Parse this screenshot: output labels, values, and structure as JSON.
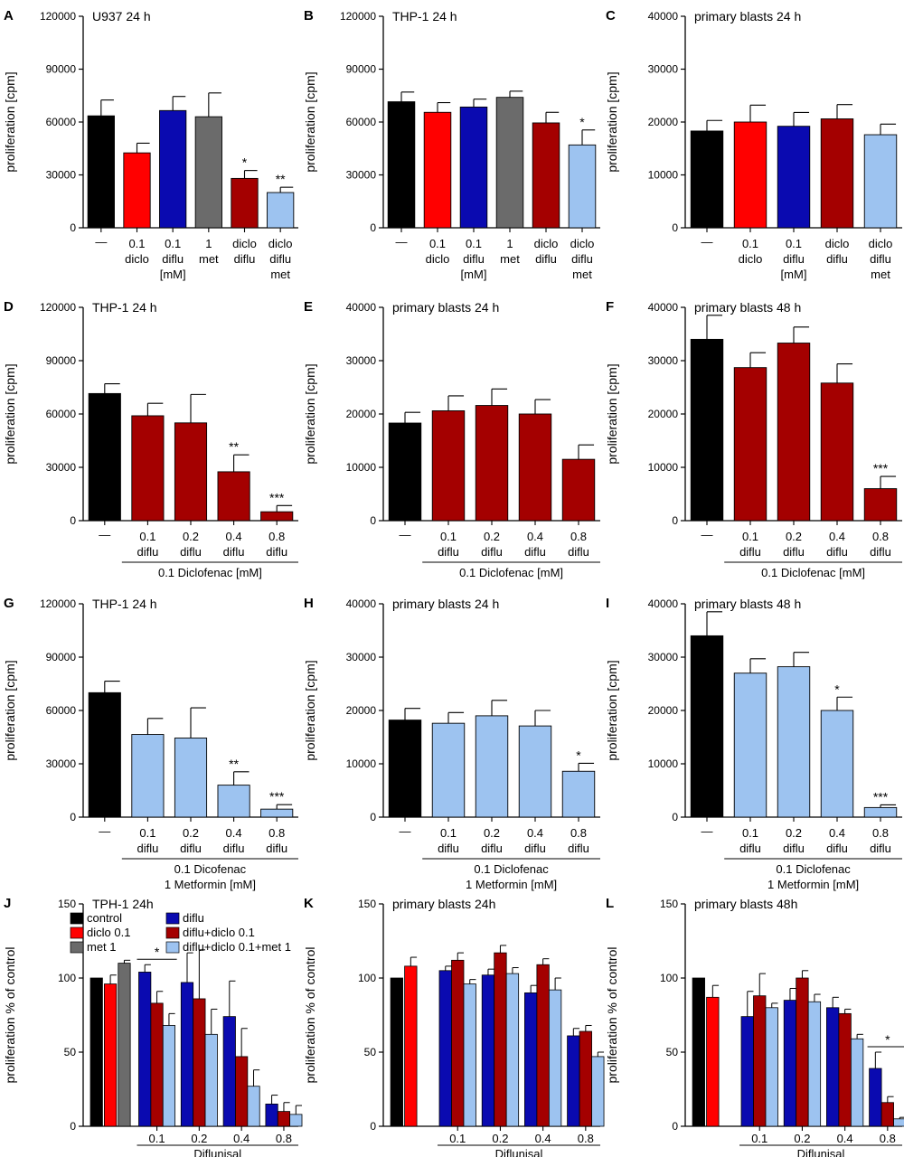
{
  "colors": {
    "black": "#000000",
    "red": "#ff0000",
    "blue": "#0a0ab0",
    "gray": "#6b6b6b",
    "darkred": "#a40000",
    "lightblue": "#9dc3f0"
  },
  "chart_data": [
    {
      "letter": "A",
      "type": "bar",
      "title": "U937 24 h",
      "ylabel": "proliferation [cpm]",
      "ylim": [
        0,
        120000
      ],
      "yticks": [
        "0",
        "30000",
        "60000",
        "90000",
        "120000"
      ],
      "categories": [
        [
          "—"
        ],
        [
          "0.1",
          "diclo"
        ],
        [
          "0.1",
          "diflu"
        ],
        [
          "1",
          "met"
        ],
        [
          "diclo",
          "diflu"
        ],
        [
          "diclo",
          "diflu",
          "met"
        ]
      ],
      "values": [
        63500,
        42500,
        66500,
        63000,
        28000,
        20000
      ],
      "errors": [
        9000,
        5500,
        8000,
        13500,
        4500,
        3000
      ],
      "colors": [
        "black",
        "red",
        "blue",
        "gray",
        "darkred",
        "lightblue"
      ],
      "sig": [
        "",
        "",
        "",
        "",
        "*",
        "**"
      ],
      "unit_label": "[mM]"
    },
    {
      "letter": "B",
      "type": "bar",
      "title": "THP-1 24 h",
      "ylabel": "proliferation [cpm]",
      "ylim": [
        0,
        120000
      ],
      "yticks": [
        "0",
        "30000",
        "60000",
        "90000",
        "120000"
      ],
      "categories": [
        [
          "—"
        ],
        [
          "0.1",
          "diclo"
        ],
        [
          "0.1",
          "diflu"
        ],
        [
          "1",
          "met"
        ],
        [
          "diclo",
          "diflu"
        ],
        [
          "diclo",
          "diflu",
          "met"
        ]
      ],
      "values": [
        71500,
        65500,
        68500,
        74000,
        59500,
        47000
      ],
      "errors": [
        5500,
        5500,
        4500,
        3500,
        6000,
        8500
      ],
      "colors": [
        "black",
        "red",
        "blue",
        "gray",
        "darkred",
        "lightblue"
      ],
      "sig": [
        "",
        "",
        "",
        "",
        "",
        "*"
      ],
      "unit_label": "[mM]"
    },
    {
      "letter": "C",
      "type": "bar",
      "title": "primary blasts 24 h",
      "ylabel": "proliferation [cpm]",
      "ylim": [
        0,
        40000
      ],
      "yticks": [
        "0",
        "10000",
        "20000",
        "30000",
        "40000"
      ],
      "categories": [
        [
          "—"
        ],
        [
          "0.1",
          "diclo"
        ],
        [
          "0.1",
          "diflu"
        ],
        [
          "diclo",
          "diflu"
        ],
        [
          "diclo",
          "diflu",
          "met"
        ]
      ],
      "values": [
        18300,
        20000,
        19200,
        20600,
        17600
      ],
      "errors": [
        2000,
        3200,
        2600,
        2700,
        2000
      ],
      "colors": [
        "black",
        "red",
        "blue",
        "darkred",
        "lightblue"
      ],
      "sig": [
        "",
        "",
        "",
        "",
        ""
      ],
      "unit_label": "[mM]"
    },
    {
      "letter": "D",
      "type": "bar",
      "title": "THP-1 24 h",
      "ylabel": "proliferation [cpm]",
      "ylim": [
        0,
        120000
      ],
      "yticks": [
        "0",
        "30000",
        "60000",
        "90000",
        "120000"
      ],
      "categories": [
        [
          "—"
        ],
        [
          "0.1",
          "diflu"
        ],
        [
          "0.2",
          "diflu"
        ],
        [
          "0.4",
          "diflu"
        ],
        [
          "0.8",
          "diflu"
        ]
      ],
      "values": [
        71500,
        59000,
        55000,
        27500,
        5000
      ],
      "errors": [
        5500,
        7000,
        16000,
        9500,
        3500
      ],
      "colors": [
        "black",
        "darkred",
        "darkred",
        "darkred",
        "darkred"
      ],
      "sig": [
        "",
        "",
        "",
        "**",
        "***"
      ],
      "bracket": [
        "0.1 Diclofenac [mM]"
      ]
    },
    {
      "letter": "E",
      "type": "bar",
      "title": "primary blasts 24 h",
      "ylabel": "proliferation [cpm]",
      "ylim": [
        0,
        40000
      ],
      "yticks": [
        "0",
        "10000",
        "20000",
        "30000",
        "40000"
      ],
      "categories": [
        [
          "—"
        ],
        [
          "0.1",
          "diflu"
        ],
        [
          "0.2",
          "diflu"
        ],
        [
          "0.4",
          "diflu"
        ],
        [
          "0.8",
          "diflu"
        ]
      ],
      "values": [
        18300,
        20600,
        21600,
        20000,
        11500
      ],
      "errors": [
        2000,
        2800,
        3100,
        2700,
        2700
      ],
      "colors": [
        "black",
        "darkred",
        "darkred",
        "darkred",
        "darkred"
      ],
      "sig": [
        "",
        "",
        "",
        "",
        ""
      ],
      "bracket": [
        "0.1 Diclofenac [mM]"
      ]
    },
    {
      "letter": "F",
      "type": "bar",
      "title": "primary blasts 48 h",
      "ylabel": "proliferation [cpm]",
      "ylim": [
        0,
        40000
      ],
      "yticks": [
        "0",
        "10000",
        "20000",
        "30000",
        "40000"
      ],
      "categories": [
        [
          "—"
        ],
        [
          "0.1",
          "diflu"
        ],
        [
          "0.2",
          "diflu"
        ],
        [
          "0.4",
          "diflu"
        ],
        [
          "0.8",
          "diflu"
        ]
      ],
      "values": [
        34000,
        28700,
        33300,
        25800,
        6000
      ],
      "errors": [
        4500,
        2800,
        3000,
        3600,
        2300
      ],
      "colors": [
        "black",
        "darkred",
        "darkred",
        "darkred",
        "darkred"
      ],
      "sig": [
        "",
        "",
        "",
        "",
        "***"
      ],
      "bracket": [
        "0.1 Diclofenac [mM]"
      ]
    },
    {
      "letter": "G",
      "type": "bar",
      "title": "THP-1 24 h",
      "ylabel": "proliferation [cpm]",
      "ylim": [
        0,
        120000
      ],
      "yticks": [
        "0",
        "30000",
        "60000",
        "90000",
        "120000"
      ],
      "categories": [
        [
          "—"
        ],
        [
          "0.1",
          "diflu"
        ],
        [
          "0.2",
          "diflu"
        ],
        [
          "0.4",
          "diflu"
        ],
        [
          "0.8",
          "diflu"
        ]
      ],
      "values": [
        70000,
        46500,
        44500,
        18000,
        4500
      ],
      "errors": [
        6500,
        9000,
        17000,
        7500,
        2500
      ],
      "colors": [
        "black",
        "lightblue",
        "lightblue",
        "lightblue",
        "lightblue"
      ],
      "sig": [
        "",
        "",
        "",
        "**",
        "***"
      ],
      "bracket": [
        "0.1 Dicofenac",
        "1 Metformin [mM]"
      ]
    },
    {
      "letter": "H",
      "type": "bar",
      "title": "primary blasts 24 h",
      "ylabel": "proliferation [cpm]",
      "ylim": [
        0,
        40000
      ],
      "yticks": [
        "0",
        "10000",
        "20000",
        "30000",
        "40000"
      ],
      "categories": [
        [
          "—"
        ],
        [
          "0.1",
          "diflu"
        ],
        [
          "0.2",
          "diflu"
        ],
        [
          "0.4",
          "diflu"
        ],
        [
          "0.8",
          "diflu"
        ]
      ],
      "values": [
        18200,
        17600,
        19000,
        17100,
        8600
      ],
      "errors": [
        2200,
        2000,
        2900,
        2900,
        1500
      ],
      "colors": [
        "black",
        "lightblue",
        "lightblue",
        "lightblue",
        "lightblue"
      ],
      "sig": [
        "",
        "",
        "",
        "",
        "*"
      ],
      "bracket": [
        "0.1 Diclofenac",
        "1 Metformin [mM]"
      ]
    },
    {
      "letter": "I",
      "type": "bar",
      "title": "primary blasts 48 h",
      "ylabel": "proliferation [cpm]",
      "ylim": [
        0,
        40000
      ],
      "yticks": [
        "0",
        "10000",
        "20000",
        "30000",
        "40000"
      ],
      "categories": [
        [
          "—"
        ],
        [
          "0.1",
          "diflu"
        ],
        [
          "0.2",
          "diflu"
        ],
        [
          "0.4",
          "diflu"
        ],
        [
          "0.8",
          "diflu"
        ]
      ],
      "values": [
        34000,
        27000,
        28200,
        20000,
        1800
      ],
      "errors": [
        4500,
        2700,
        2700,
        2500,
        500
      ],
      "colors": [
        "black",
        "lightblue",
        "lightblue",
        "lightblue",
        "lightblue"
      ],
      "sig": [
        "",
        "",
        "",
        "*",
        "***"
      ],
      "bracket": [
        "0.1 Diclofenac",
        "1 Metformin [mM]"
      ]
    },
    {
      "letter": "J",
      "type": "grouped-bar",
      "title": "TPH-1 24h",
      "ylabel": "proliferation % of control",
      "xlabel": "Diflunisal",
      "ylim": [
        0,
        150
      ],
      "yticks": [
        "0",
        "50",
        "100",
        "150"
      ],
      "controls": [
        {
          "name": "control",
          "color": "black",
          "value": 100,
          "error": 0
        },
        {
          "name": "diclo 0.1",
          "color": "red",
          "value": 96,
          "error": 6
        },
        {
          "name": "met 1",
          "color": "gray",
          "value": 110,
          "error": 2
        }
      ],
      "categories": [
        "0.1",
        "0.2",
        "0.4",
        "0.8"
      ],
      "series": [
        {
          "name": "diflu",
          "color": "blue",
          "values": [
            104,
            97,
            74,
            15
          ],
          "errors": [
            5,
            20,
            24,
            6
          ]
        },
        {
          "name": "diflu+diclo 0.1",
          "color": "darkred",
          "values": [
            83,
            86,
            47,
            10
          ],
          "errors": [
            8,
            33,
            19,
            6
          ]
        },
        {
          "name": "diflu+diclo 0.1+met 1",
          "color": "lightblue",
          "values": [
            68,
            62,
            27,
            8
          ],
          "errors": [
            8,
            17,
            11,
            6
          ]
        }
      ],
      "sig": {
        "label": "*",
        "bracket": "0.1"
      },
      "legend": "top-left"
    },
    {
      "letter": "K",
      "type": "grouped-bar",
      "title": "primary blasts 24h",
      "ylabel": "proliferation % of control",
      "xlabel": "Diflunisal",
      "ylim": [
        0,
        150
      ],
      "yticks": [
        "0",
        "50",
        "100",
        "150"
      ],
      "controls": [
        {
          "name": "control",
          "color": "black",
          "value": 100,
          "error": 0
        },
        {
          "name": "diclo 0.1",
          "color": "red",
          "value": 108,
          "error": 6
        }
      ],
      "categories": [
        "0.1",
        "0.2",
        "0.4",
        "0.8"
      ],
      "series": [
        {
          "name": "diflu",
          "color": "blue",
          "values": [
            105,
            102,
            90,
            61
          ],
          "errors": [
            3,
            4,
            5,
            5
          ]
        },
        {
          "name": "diflu+diclo 0.1",
          "color": "darkred",
          "values": [
            112,
            117,
            109,
            64
          ],
          "errors": [
            5,
            5,
            4,
            4
          ]
        },
        {
          "name": "diflu+diclo 0.1+met 1",
          "color": "lightblue",
          "values": [
            96,
            103,
            92,
            47
          ],
          "errors": [
            3,
            4,
            8,
            3
          ]
        }
      ]
    },
    {
      "letter": "L",
      "type": "grouped-bar",
      "title": "primary blasts 48h",
      "ylabel": "proliferation % of control",
      "xlabel": "Diflunisal",
      "ylim": [
        0,
        150
      ],
      "yticks": [
        "0",
        "50",
        "100",
        "150"
      ],
      "controls": [
        {
          "name": "control",
          "color": "black",
          "value": 100,
          "error": 0
        },
        {
          "name": "diclo 0.1",
          "color": "red",
          "value": 87,
          "error": 8
        }
      ],
      "categories": [
        "0.1",
        "0.2",
        "0.4",
        "0.8"
      ],
      "series": [
        {
          "name": "diflu",
          "color": "blue",
          "values": [
            74,
            85,
            80,
            39
          ],
          "errors": [
            17,
            8,
            7,
            11
          ]
        },
        {
          "name": "diflu+diclo 0.1",
          "color": "darkred",
          "values": [
            88,
            100,
            76,
            16
          ],
          "errors": [
            15,
            5,
            3,
            4
          ]
        },
        {
          "name": "diflu+diclo 0.1+met 1",
          "color": "lightblue",
          "values": [
            80,
            84,
            59,
            5
          ],
          "errors": [
            3,
            5,
            3,
            1
          ]
        }
      ],
      "sig": {
        "label": "*",
        "bracket": "0.8"
      }
    }
  ]
}
